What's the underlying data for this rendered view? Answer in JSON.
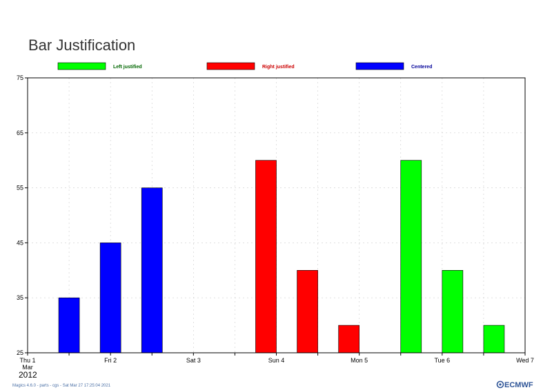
{
  "chart_data": {
    "type": "bar",
    "title": "Bar Justification",
    "xlabel": "",
    "ylabel": "",
    "ylim": [
      25,
      75
    ],
    "yticks": [
      25,
      35,
      45,
      55,
      65,
      75
    ],
    "x_ticks": [
      {
        "date": "2012-03-01",
        "label": "Thu 1",
        "sublabel": "Mar",
        "color": "#000000"
      },
      {
        "date": "2012-03-02",
        "label": "Fri 2",
        "color": "#000000"
      },
      {
        "date": "2012-03-03",
        "label": "Sat 3",
        "color": "#000000"
      },
      {
        "date": "2012-03-04",
        "label": "Sun 4",
        "color": "#e00000"
      },
      {
        "date": "2012-03-05",
        "label": "Mon 5",
        "color": "#000000"
      },
      {
        "date": "2012-03-06",
        "label": "Tue 6",
        "color": "#000000"
      },
      {
        "date": "2012-03-07",
        "label": "Wed 7",
        "color": "#000000"
      }
    ],
    "year_label": "2012",
    "grid": true,
    "legend_position": "top",
    "series": [
      {
        "name": "Left justified",
        "color": "#00ff00",
        "text_color": "#006600",
        "justification": "left",
        "points": [
          {
            "x": "2012-03-05 12:00",
            "value": 60
          },
          {
            "x": "2012-03-06 00:00",
            "value": 40
          },
          {
            "x": "2012-03-06 12:00",
            "value": 30
          }
        ]
      },
      {
        "name": "Right justified",
        "color": "#ff0000",
        "text_color": "#cc0000",
        "justification": "right",
        "points": [
          {
            "x": "2012-03-04 00:00",
            "value": 60
          },
          {
            "x": "2012-03-04 12:00",
            "value": 40
          },
          {
            "x": "2012-03-05 00:00",
            "value": 30
          }
        ]
      },
      {
        "name": "Centered",
        "color": "#0000ff",
        "text_color": "#000099",
        "justification": "centre",
        "points": [
          {
            "x": "2012-03-01 12:00",
            "value": 35
          },
          {
            "x": "2012-03-02 00:00",
            "value": 45
          },
          {
            "x": "2012-03-02 12:00",
            "value": 55
          }
        ]
      }
    ]
  },
  "footer": {
    "text": "Magics 4.6.0 - parts - cgs - Sat Mar 27 17:25:04 2021",
    "logo": "ECMWF",
    "logo_icon": "ecmwf-logo-icon"
  }
}
